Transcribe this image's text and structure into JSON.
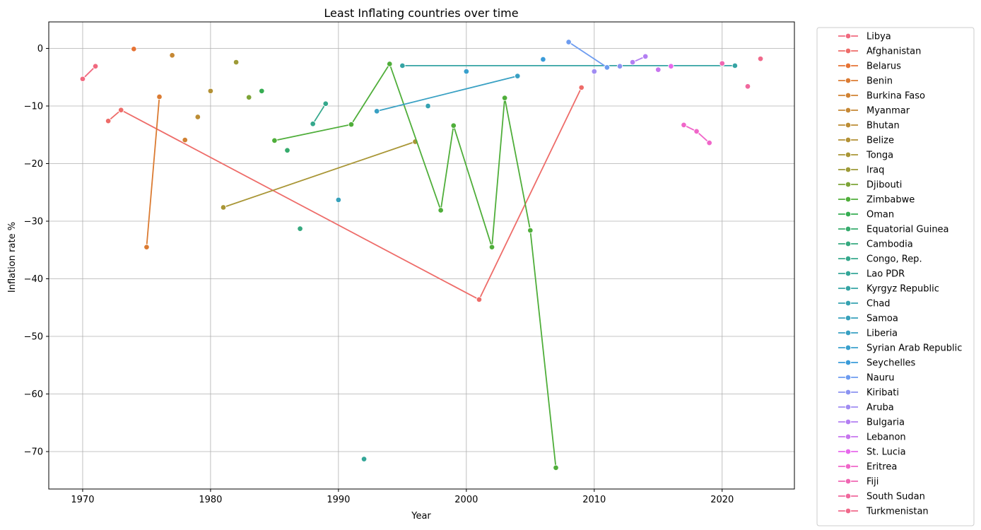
{
  "chart_data": {
    "type": "line",
    "title": "Least Inflating countries over time",
    "xlabel": "Year",
    "ylabel": "Inflation rate %",
    "xlim": [
      1967.35,
      2025.65
    ],
    "ylim": [
      -76.5,
      4.6
    ],
    "xticks": [
      1970,
      1980,
      1990,
      2000,
      2010,
      2020
    ],
    "yticks": [
      0,
      -10,
      -20,
      -30,
      -40,
      -50,
      -60,
      -70
    ],
    "grid": true,
    "legend_position": "outside-right",
    "markers": true,
    "series": [
      {
        "name": "Libya",
        "color": "#f0697f",
        "points": [
          [
            1970,
            -5.3
          ],
          [
            1971,
            -3.1
          ]
        ]
      },
      {
        "name": "Afghanistan",
        "color": "#ee6c69",
        "points": [
          [
            1972,
            -12.6
          ],
          [
            1973,
            -10.7
          ],
          [
            2001,
            -43.6
          ],
          [
            2009,
            -6.8
          ]
        ]
      },
      {
        "name": "Belarus",
        "color": "#e67335",
        "points": [
          [
            1974,
            -0.1
          ]
        ]
      },
      {
        "name": "Benin",
        "color": "#db7b32",
        "points": [
          [
            1975,
            -34.5
          ],
          [
            1976,
            -8.4
          ]
        ]
      },
      {
        "name": "Burkina Faso",
        "color": "#d08233",
        "points": [
          [
            1978,
            -15.9
          ]
        ]
      },
      {
        "name": "Myanmar",
        "color": "#c68834",
        "points": [
          [
            1977,
            -1.2
          ]
        ]
      },
      {
        "name": "Bhutan",
        "color": "#bc8d35",
        "points": [
          [
            1979,
            -11.9
          ]
        ]
      },
      {
        "name": "Belize",
        "color": "#b39135",
        "points": [
          [
            1980,
            -7.4
          ]
        ]
      },
      {
        "name": "Tonga",
        "color": "#a99636",
        "points": [
          [
            1981,
            -27.6
          ],
          [
            1996,
            -16.2
          ]
        ]
      },
      {
        "name": "Iraq",
        "color": "#9d9a37",
        "points": [
          [
            1982,
            -2.4
          ]
        ]
      },
      {
        "name": "Djibouti",
        "color": "#7da437",
        "points": [
          [
            1983,
            -8.5
          ]
        ]
      },
      {
        "name": "Zimbabwe",
        "color": "#4fae3a",
        "points": [
          [
            1985,
            -16.0
          ],
          [
            1991,
            -13.2
          ],
          [
            1994,
            -2.7
          ],
          [
            1998,
            -28.1
          ],
          [
            1999,
            -13.4
          ],
          [
            2002,
            -34.5
          ],
          [
            2003,
            -8.6
          ],
          [
            2005,
            -31.6
          ],
          [
            2007,
            -72.8
          ]
        ]
      },
      {
        "name": "Oman",
        "color": "#36ad52",
        "points": [
          [
            1984,
            -7.4
          ]
        ]
      },
      {
        "name": "Equatorial Guinea",
        "color": "#36ab6d",
        "points": [
          [
            1986,
            -17.7
          ]
        ]
      },
      {
        "name": "Cambodia",
        "color": "#36a97f",
        "points": [
          [
            1987,
            -31.3
          ]
        ]
      },
      {
        "name": "Congo, Rep.",
        "color": "#35a88c",
        "points": [
          [
            1988,
            -13.1
          ],
          [
            1989,
            -9.6
          ]
        ]
      },
      {
        "name": "Lao PDR",
        "color": "#34a698",
        "points": [
          [
            1992,
            -71.3
          ]
        ]
      },
      {
        "name": "Kyrgyz Republic",
        "color": "#35a4a4",
        "points": [
          [
            1995,
            -3.0
          ],
          [
            2021,
            -3.0
          ]
        ]
      },
      {
        "name": "Chad",
        "color": "#36a2b1",
        "points": [
          [
            1997,
            -10.0
          ]
        ]
      },
      {
        "name": "Samoa",
        "color": "#37a1bb",
        "points": [
          [
            1990,
            -26.3
          ]
        ]
      },
      {
        "name": "Liberia",
        "color": "#38a0c3",
        "points": [
          [
            1993,
            -10.9
          ],
          [
            2004,
            -4.8
          ]
        ]
      },
      {
        "name": "Syrian Arab Republic",
        "color": "#39a0cd",
        "points": [
          [
            2000,
            -4.0
          ]
        ]
      },
      {
        "name": "Seychelles",
        "color": "#3a9bd9",
        "points": [
          [
            2006,
            -1.9
          ]
        ]
      },
      {
        "name": "Nauru",
        "color": "#6d9cf0",
        "points": [
          [
            2008,
            1.1
          ],
          [
            2011,
            -3.3
          ]
        ]
      },
      {
        "name": "Kiribati",
        "color": "#8b93f1",
        "points": [
          [
            2012,
            -3.1
          ]
        ]
      },
      {
        "name": "Aruba",
        "color": "#a08cf2",
        "points": [
          [
            2010,
            -4.0
          ]
        ]
      },
      {
        "name": "Bulgaria",
        "color": "#b37ff2",
        "points": [
          [
            2014,
            -1.4
          ],
          [
            2013,
            -2.4
          ]
        ]
      },
      {
        "name": "Lebanon",
        "color": "#c775ee",
        "points": [
          [
            2015,
            -3.7
          ]
        ]
      },
      {
        "name": "St. Lucia",
        "color": "#e768ec",
        "points": [
          [
            2016,
            -3.1
          ]
        ]
      },
      {
        "name": "Eritrea",
        "color": "#f066c9",
        "points": [
          [
            2017,
            -13.3
          ],
          [
            2018,
            -14.4
          ],
          [
            2019,
            -16.4
          ]
        ]
      },
      {
        "name": "Fiji",
        "color": "#f067b3",
        "points": [
          [
            2020,
            -2.6
          ]
        ]
      },
      {
        "name": "South Sudan",
        "color": "#f0689d",
        "points": [
          [
            2022,
            -6.6
          ]
        ]
      },
      {
        "name": "Turkmenistan",
        "color": "#f0698b",
        "points": [
          [
            2023,
            -1.8
          ]
        ]
      }
    ]
  }
}
